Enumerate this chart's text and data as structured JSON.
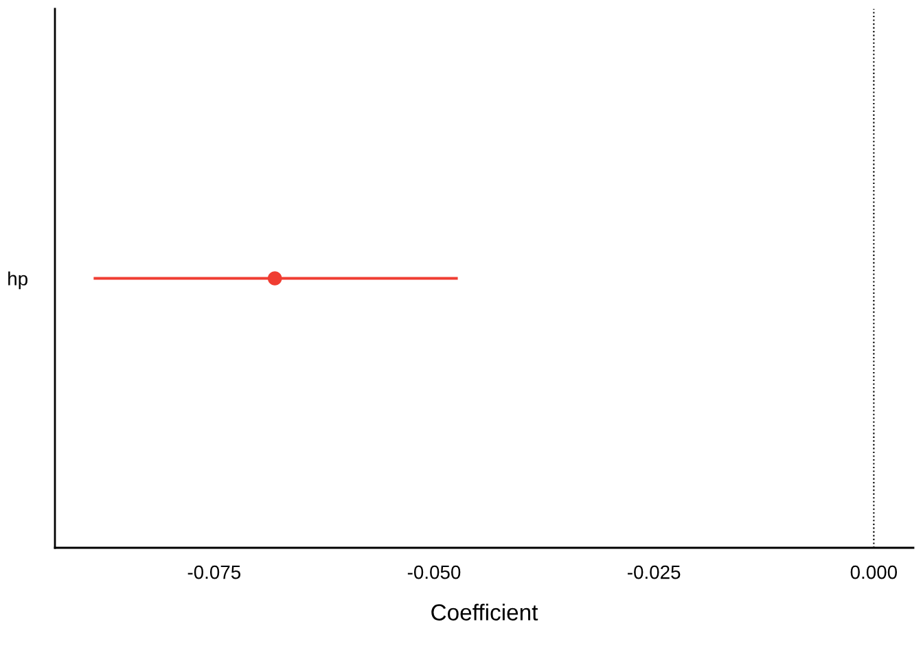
{
  "chart_data": {
    "type": "scatter",
    "orientation": "horizontal",
    "xlabel": "Coefficient",
    "categories": [
      "hp"
    ],
    "values": [
      -0.0681
    ],
    "errors": [
      [
        -0.0887,
        -0.0473
      ]
    ],
    "color": "#f03d32",
    "xlim": [
      -0.0931,
      0.0045
    ],
    "xticks": [
      {
        "value": -0.075,
        "label": "-0.075"
      },
      {
        "value": -0.05,
        "label": "-0.050"
      },
      {
        "value": -0.025,
        "label": "-0.025"
      },
      {
        "value": 0,
        "label": "0.000"
      }
    ],
    "ref_lines": [
      {
        "axis": "x",
        "value": 0,
        "line_style": "dotted",
        "color": "#000000"
      }
    ],
    "grid": false,
    "legend": false,
    "marker": "circle"
  }
}
